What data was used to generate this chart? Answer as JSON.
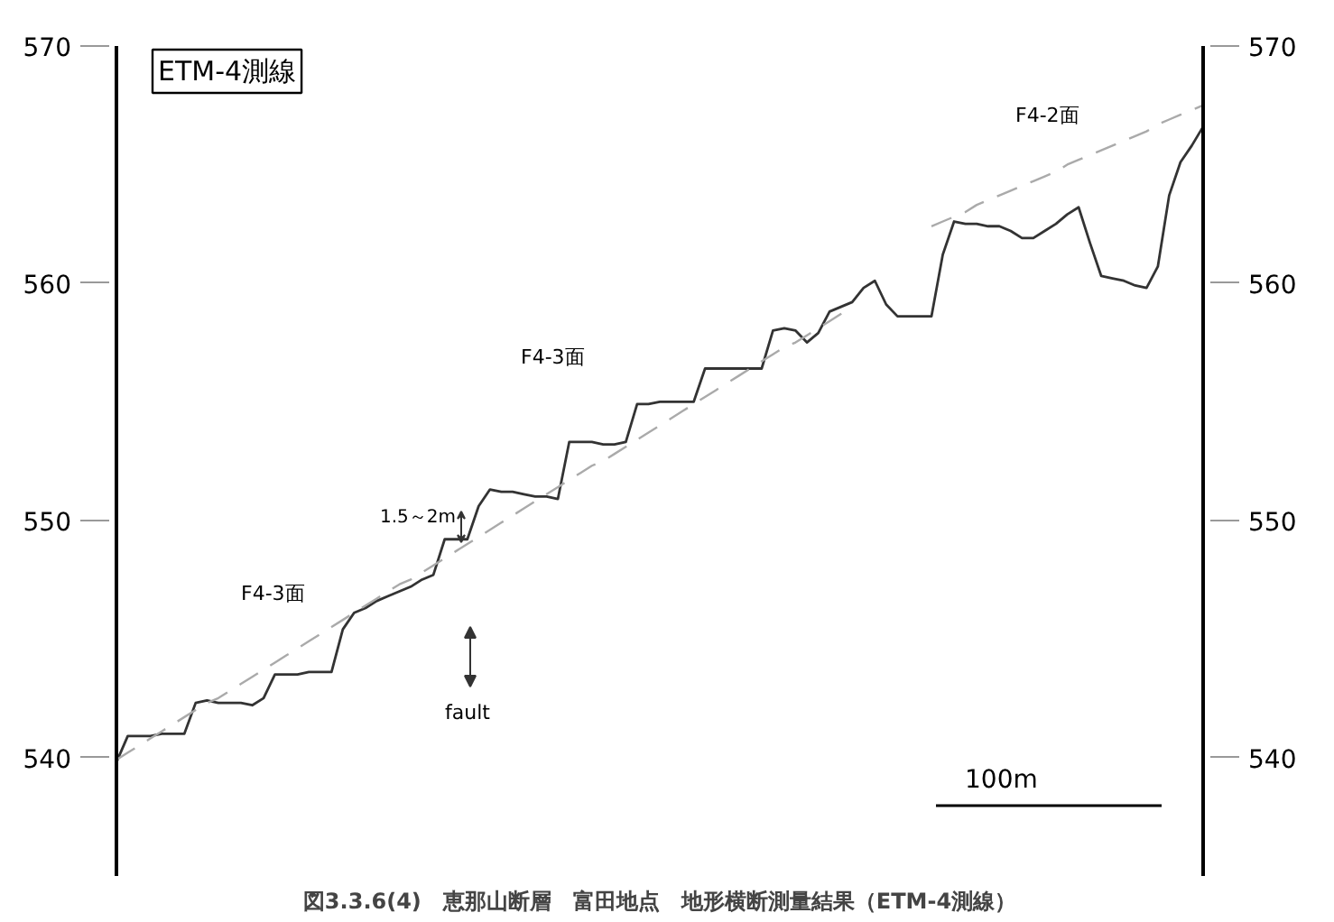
{
  "chart_data": {
    "type": "line",
    "title": "図3.3.6(4)　恵那山断層　富田地点　地形横断測量結果（ETM-4測線）",
    "categories": [
      null,
      null,
      null,
      null,
      null,
      null,
      null,
      null,
      null,
      null,
      null,
      null,
      null,
      null,
      null,
      null,
      null,
      null,
      null,
      null,
      null,
      null,
      null,
      null,
      null,
      null,
      null,
      null,
      null,
      null,
      null,
      null,
      null,
      null,
      null,
      null,
      null,
      null,
      null,
      null,
      null,
      null,
      null,
      null,
      null,
      null,
      null,
      null,
      null,
      null,
      null,
      null,
      null,
      null,
      null,
      null,
      null,
      null,
      null,
      null,
      null,
      null,
      null,
      null,
      null,
      null,
      null,
      null,
      null,
      null,
      null,
      null,
      null,
      null,
      null,
      null,
      null,
      null,
      null,
      null,
      null,
      null,
      null,
      null,
      null,
      null,
      null,
      null,
      null,
      null,
      null,
      null,
      null,
      null,
      null,
      null,
      null
    ],
    "ylim": [
      535,
      570
    ],
    "yticks": [
      540,
      550,
      560,
      570
    ],
    "y2lim": [
      535,
      570
    ],
    "y2ticks": [
      540,
      550,
      560,
      570
    ],
    "tick_labels": "y",
    "series": [
      {
        "color": "#333333",
        "line_style": "solid",
        "values": [
          539.8,
          540.9,
          540.9,
          540.9,
          541.0,
          541.0,
          541.0,
          542.3,
          542.4,
          542.3,
          542.3,
          542.3,
          542.2,
          542.5,
          543.5,
          543.5,
          543.5,
          543.6,
          543.6,
          543.6,
          545.4,
          546.1,
          546.3,
          546.6,
          546.8,
          547.0,
          547.2,
          547.5,
          547.7,
          549.2,
          549.2,
          549.2,
          550.6,
          551.3,
          551.2,
          551.2,
          551.1,
          551.0,
          551.0,
          550.9,
          553.3,
          553.3,
          553.3,
          553.2,
          553.2,
          553.3,
          554.9,
          554.9,
          555.0,
          555.0,
          555.0,
          555.0,
          556.4,
          556.4,
          556.4,
          556.4,
          556.4,
          556.4,
          558.0,
          558.1,
          558.0,
          557.5,
          557.9,
          558.8,
          559.0,
          559.2,
          559.8,
          560.1,
          559.1,
          558.6,
          558.6,
          558.6,
          558.6,
          561.2,
          562.6,
          562.5,
          562.5,
          562.4,
          562.4,
          562.2,
          561.9,
          561.9,
          562.2,
          562.5,
          562.9,
          563.2,
          561.7,
          560.3,
          560.2,
          560.1,
          559.9,
          559.8,
          560.7,
          563.7,
          565.1,
          565.8,
          566.6
        ]
      },
      {
        "color": "#aaaaaa",
        "line_style": "dashed",
        "values": [
          539.9,
          540.2,
          540.5,
          540.8,
          541.1,
          541.4,
          541.7,
          542.0,
          542.3,
          542.5,
          542.8,
          543.1,
          543.4,
          543.7,
          544.0,
          544.3,
          544.6,
          544.9,
          545.2,
          545.5,
          545.8,
          546.1,
          546.4,
          546.7,
          547.0,
          547.3,
          547.5,
          547.8,
          548.1,
          548.4,
          548.7,
          549.0,
          549.3,
          549.6,
          549.9,
          550.2,
          550.5,
          550.8,
          551.1,
          551.4,
          551.7,
          552.0,
          552.3,
          552.5,
          552.8,
          553.1,
          553.4,
          553.7,
          554.0,
          554.3,
          554.6,
          554.9,
          555.2,
          555.5,
          555.8,
          556.1,
          556.4,
          556.7,
          557.0,
          557.3,
          557.5,
          557.8,
          558.1,
          558.4,
          558.7,
          559.0,
          null,
          null,
          null,
          null,
          null,
          null,
          null,
          null,
          null,
          null,
          null,
          null,
          null,
          null,
          null,
          null,
          null,
          null,
          null,
          null,
          null,
          null,
          null,
          null,
          null,
          null,
          null,
          null,
          null,
          null,
          null
        ]
      },
      {
        "color": "#aaaaaa",
        "line_style": "dashed",
        "values": [
          null,
          null,
          null,
          null,
          null,
          null,
          null,
          null,
          null,
          null,
          null,
          null,
          null,
          null,
          null,
          null,
          null,
          null,
          null,
          null,
          null,
          null,
          null,
          null,
          null,
          null,
          null,
          null,
          null,
          null,
          null,
          null,
          null,
          null,
          null,
          null,
          null,
          null,
          null,
          null,
          null,
          null,
          null,
          null,
          null,
          null,
          null,
          null,
          null,
          null,
          null,
          null,
          null,
          null,
          null,
          null,
          null,
          null,
          null,
          null,
          null,
          null,
          null,
          null,
          null,
          null,
          null,
          null,
          null,
          null,
          null,
          null,
          562.4,
          562.6,
          562.8,
          563.0,
          563.3,
          563.5,
          563.7,
          563.9,
          564.1,
          564.3,
          564.5,
          564.7,
          565.0,
          565.2,
          565.4,
          565.6,
          565.8,
          566.0,
          566.2,
          566.4,
          566.7,
          566.9,
          567.1,
          567.3,
          567.5
        ]
      }
    ],
    "annotations": [
      "ETM-4測線",
      "F4-3面",
      "F4-3面",
      "F4-2面",
      "1.5～2m",
      "fault",
      "100m"
    ]
  }
}
